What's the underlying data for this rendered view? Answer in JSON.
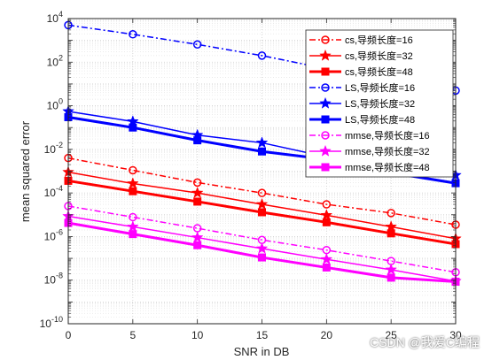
{
  "watermark": "CSDN @我爱C编程",
  "chart_data": {
    "type": "line",
    "xlabel": "SNR in DB",
    "ylabel": "mean squared error",
    "x": [
      0,
      5,
      10,
      15,
      20,
      25,
      30
    ],
    "xticks": [
      "0",
      "5",
      "10",
      "15",
      "20",
      "25",
      "30"
    ],
    "xlim": [
      0,
      30
    ],
    "yscale": "log",
    "ylim": [
      1e-10,
      10000
    ],
    "yticks": [
      {
        "base": "10",
        "exp": "4",
        "value": 10000
      },
      {
        "base": "10",
        "exp": "2",
        "value": 100
      },
      {
        "base": "10",
        "exp": "0",
        "value": 1
      },
      {
        "base": "10",
        "exp": "-2",
        "value": 0.01
      },
      {
        "base": "10",
        "exp": "-4",
        "value": 0.0001
      },
      {
        "base": "10",
        "exp": "-6",
        "value": 1e-06
      },
      {
        "base": "10",
        "exp": "-8",
        "value": 1e-08
      },
      {
        "base": "10",
        "exp": "-10",
        "value": 1e-10
      }
    ],
    "grid": true,
    "legend_position": "top-right",
    "series": [
      {
        "name": "cs,导频长度=16",
        "color": "#ff0000",
        "dash": "dashdot",
        "marker": "circle",
        "width": 1.5,
        "values": [
          0.004,
          0.0011,
          0.0003,
          0.0001,
          3e-05,
          1.2e-05,
          3.5e-06
        ]
      },
      {
        "name": "cs,导频长度=32",
        "color": "#ff0000",
        "dash": "solid",
        "marker": "star",
        "width": 1.5,
        "values": [
          0.0009,
          0.00027,
          0.0001,
          3e-05,
          9.5e-06,
          2.8e-06,
          8e-07
        ]
      },
      {
        "name": "cs,导频长度=48",
        "color": "#ff0000",
        "dash": "solid",
        "marker": "square",
        "width": 3,
        "values": [
          0.00036,
          0.00012,
          4e-05,
          1.3e-05,
          4.5e-06,
          1.4e-06,
          4.5e-07
        ]
      },
      {
        "name": "LS,导频长度=16",
        "color": "#0000ff",
        "dash": "dashdot",
        "marker": "circle",
        "width": 1.5,
        "values": [
          5000,
          1900,
          650,
          200,
          50,
          17,
          5
        ]
      },
      {
        "name": "LS,导频长度=32",
        "color": "#0000ff",
        "dash": "solid",
        "marker": "star",
        "width": 1.5,
        "values": [
          0.55,
          0.19,
          0.045,
          0.02,
          0.0045,
          0.0016,
          0.00065
        ]
      },
      {
        "name": "LS,导频长度=48",
        "color": "#0000ff",
        "dash": "solid",
        "marker": "square",
        "width": 3,
        "values": [
          0.3,
          0.1,
          0.026,
          0.008,
          0.0035,
          0.00085,
          0.00028
        ]
      },
      {
        "name": "mmse,导频长度=16",
        "color": "#ff00ff",
        "dash": "dashdot",
        "marker": "circle",
        "width": 1.5,
        "values": [
          2.5e-05,
          7.8e-06,
          2.4e-06,
          7e-07,
          2.4e-07,
          7.5e-08,
          2.3e-08
        ]
      },
      {
        "name": "mmse,导频长度=32",
        "color": "#ff00ff",
        "dash": "solid",
        "marker": "star",
        "width": 1.5,
        "values": [
          8.5e-06,
          2.8e-06,
          9e-07,
          2.8e-07,
          9e-08,
          3e-08,
          9e-09
        ]
      },
      {
        "name": "mmse,导频长度=48",
        "color": "#ff00ff",
        "dash": "solid",
        "marker": "square",
        "width": 3,
        "values": [
          4.2e-06,
          1.3e-06,
          4e-07,
          1.1e-07,
          3.8e-08,
          1.3e-08,
          8.5e-09
        ]
      }
    ]
  }
}
